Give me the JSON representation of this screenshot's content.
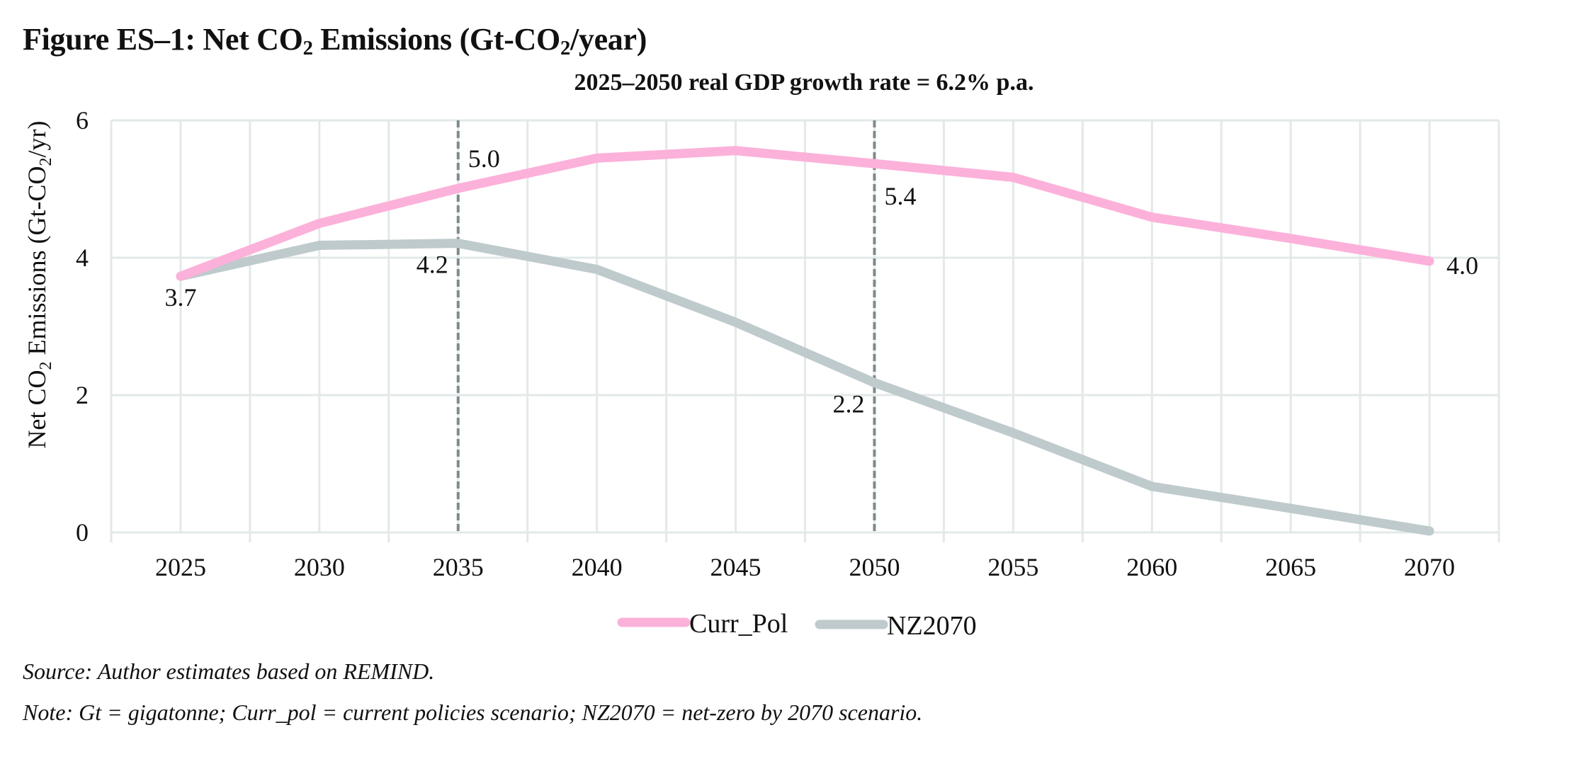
{
  "figure": {
    "title_prefix": "Figure ES–1: Net CO",
    "title_sub": "2",
    "title_mid": " Emissions (Gt-CO",
    "title_sub2": "2",
    "title_suffix": "/year)",
    "subtitle": "2025–2050 real GDP growth rate = 6.2% p.a.",
    "source": "Source: Author estimates based on REMIND.",
    "note": "Note: Gt = gigatonne; Curr_pol = current policies scenario; NZ2070 = net-zero by 2070 scenario."
  },
  "chart_data": {
    "type": "line",
    "title": "Figure ES–1: Net CO₂ Emissions (Gt-CO₂/year)",
    "subtitle": "2025–2050 real GDP growth rate = 6.2% p.a.",
    "xlabel": "",
    "ylabel": "Net CO₂ Emissions (Gt-CO₂/yr)",
    "x": [
      2025,
      2030,
      2035,
      2040,
      2045,
      2050,
      2055,
      2060,
      2065,
      2070
    ],
    "xlim": [
      2022.5,
      2072.5
    ],
    "ylim": [
      0,
      6
    ],
    "yticks": [
      0,
      2,
      4,
      6
    ],
    "grid": true,
    "legend_position": "bottom-center",
    "series": [
      {
        "name": "Curr_Pol",
        "color": "#fcb1da",
        "values": [
          3.73,
          4.5,
          5.01,
          5.45,
          5.56,
          5.37,
          5.17,
          4.59,
          4.28,
          3.95
        ]
      },
      {
        "name": "NZ2070",
        "color": "#bfcacd",
        "values": [
          3.73,
          4.18,
          4.21,
          3.83,
          3.06,
          2.18,
          1.45,
          0.67,
          0.35,
          0.02
        ]
      }
    ],
    "reference_lines": [
      {
        "x": 2035,
        "style": "dashed",
        "color": "#7d8a8b"
      },
      {
        "x": 2050,
        "style": "dashed",
        "color": "#7d8a8b"
      }
    ],
    "annotations": [
      {
        "text": "3.7",
        "x": 2025,
        "series": "NZ2070",
        "placement": "below"
      },
      {
        "text": "4.2",
        "x": 2035,
        "series": "NZ2070",
        "placement": "below-left"
      },
      {
        "text": "5.0",
        "x": 2035,
        "series": "Curr_Pol",
        "placement": "above-right"
      },
      {
        "text": "5.4",
        "x": 2050,
        "series": "Curr_Pol",
        "placement": "below-right"
      },
      {
        "text": "2.2",
        "x": 2050,
        "series": "NZ2070",
        "placement": "below-left"
      },
      {
        "text": "4.0",
        "x": 2070,
        "series": "Curr_Pol",
        "placement": "right"
      }
    ],
    "colors": {
      "grid": "#e2e9e8",
      "text": "#111111"
    }
  }
}
